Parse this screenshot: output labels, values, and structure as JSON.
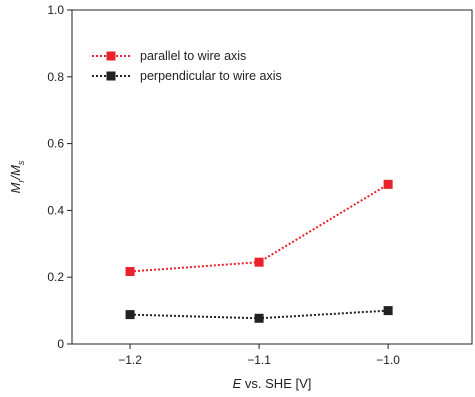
{
  "chart_data": {
    "type": "line",
    "xlabel": {
      "italic": "E",
      "rest": " vs. SHE [V]"
    },
    "ylabel": {
      "parts": [
        "M",
        "r",
        "/M",
        "s"
      ]
    },
    "x_ticks": [
      -1.2,
      -1.1,
      -1.0
    ],
    "x_tick_labels": [
      "−1.2",
      "−1.1",
      "−1.0"
    ],
    "xlim": [
      -1.245,
      -0.935
    ],
    "y_ticks": [
      0,
      0.2,
      0.4,
      0.6,
      0.8,
      1.0
    ],
    "y_tick_labels": [
      "0",
      "0.2",
      "0.4",
      "0.6",
      "0.8",
      "1.0"
    ],
    "ylim": [
      0,
      1.0
    ],
    "grid": false,
    "legend_position": "top-left",
    "series": [
      {
        "name": "parallel to wire axis",
        "color": "#e8222b",
        "marker": "square",
        "line_style": "dotted",
        "x": [
          -1.2,
          -1.1,
          -1.0
        ],
        "y": [
          0.217,
          0.245,
          0.478
        ]
      },
      {
        "name": "perpendicular to wire axis",
        "color": "#222222",
        "marker": "square",
        "line_style": "dotted",
        "x": [
          -1.2,
          -1.1,
          -1.0
        ],
        "y": [
          0.088,
          0.077,
          0.1
        ]
      }
    ]
  }
}
